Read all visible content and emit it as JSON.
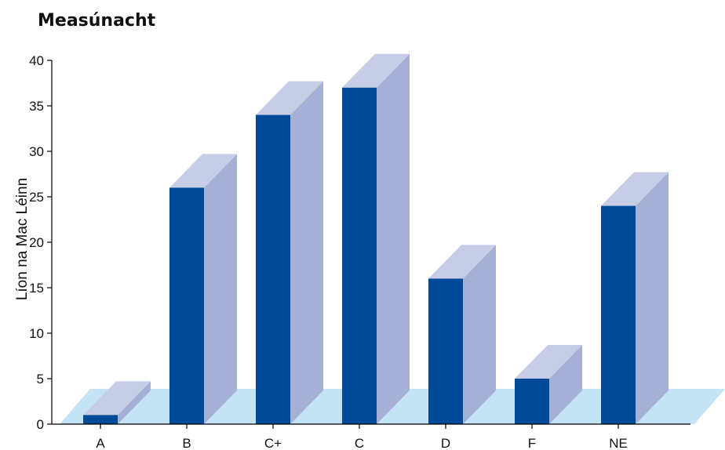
{
  "chart_data": {
    "type": "bar",
    "title": "Measúnacht",
    "xlabel": "",
    "ylabel": "Líon na Mac Léinn",
    "categories": [
      "A",
      "B",
      "C+",
      "C",
      "D",
      "F",
      "NE"
    ],
    "values": [
      1,
      26,
      34,
      37,
      16,
      5,
      24
    ],
    "ylim": [
      0,
      40
    ],
    "yticks": [
      "0",
      "5",
      "10",
      "15",
      "20",
      "25",
      "30",
      "35",
      "40"
    ],
    "grid": false,
    "legend": "none",
    "colors": {
      "bar_front": "#004a97",
      "bar_side": "#a6b0d6",
      "bar_top": "#c7cde6",
      "floor": "#c4e4f6"
    }
  }
}
